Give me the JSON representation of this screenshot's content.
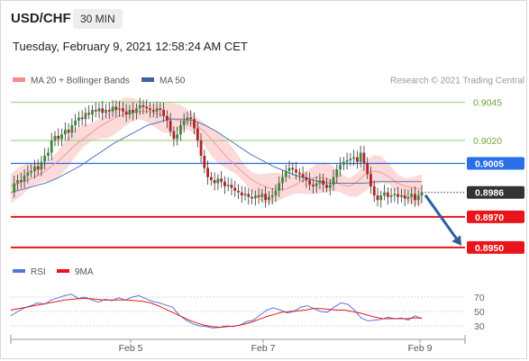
{
  "header": {
    "symbol": "USD/CHF",
    "timeframe": "30 MIN",
    "datetime": "Tuesday, February 9, 2021 12:58:24 AM CET"
  },
  "chart_data": [
    {
      "type": "line",
      "title": "",
      "legend": [
        {
          "name": "MA 20 + Bollinger Bands",
          "color": "#f28b8b"
        },
        {
          "name": "MA 50",
          "color": "#3f5f9f"
        }
      ],
      "legend_position": "top-left",
      "credit": "Research © 2021 Trading Central",
      "ylim": [
        0.8944,
        0.9053
      ],
      "grid": false,
      "current_price": {
        "value": 0.8986,
        "label": "0.8986",
        "color": "#333333"
      },
      "levels": [
        {
          "value": 0.9045,
          "label": "0.9045",
          "kind": "resistance",
          "color": "#8ccc6e",
          "boxed": false
        },
        {
          "value": 0.902,
          "label": "0.9020",
          "kind": "resistance",
          "color": "#8ccc6e",
          "boxed": false
        },
        {
          "value": 0.9005,
          "label": "0.9005",
          "kind": "pivot",
          "color": "#2a6ee8",
          "boxed": true
        },
        {
          "value": 0.897,
          "label": "0.8970",
          "kind": "support",
          "color": "#e8161a",
          "boxed": true
        },
        {
          "value": 0.895,
          "label": "0.8950",
          "kind": "support",
          "color": "#e8161a",
          "boxed": true
        }
      ],
      "projection": {
        "from": 0.8986,
        "to": 0.895,
        "color": "#2f5f9e"
      },
      "candle_colors": {
        "up": "#3a8a3a",
        "down": "#b22222"
      },
      "candle_closes": [
        0.8986,
        0.8992,
        0.8994,
        0.8993,
        0.8997,
        0.8999,
        0.9,
        0.9003,
        0.9001,
        0.9006,
        0.901,
        0.9012,
        0.902,
        0.9023,
        0.9021,
        0.9024,
        0.9027,
        0.9025,
        0.903,
        0.9033,
        0.9035,
        0.9034,
        0.9038,
        0.9037,
        0.904,
        0.9039,
        0.9041,
        0.9038,
        0.904,
        0.9039,
        0.9042,
        0.904,
        0.9041,
        0.9039,
        0.9037,
        0.904,
        0.9038,
        0.9041,
        0.9043,
        0.9042,
        0.9041,
        0.904,
        0.9039,
        0.9041,
        0.904,
        0.9036,
        0.9033,
        0.9026,
        0.9021,
        0.9024,
        0.903,
        0.9033,
        0.9035,
        0.9034,
        0.9028,
        0.902,
        0.901,
        0.9002,
        0.8996,
        0.8994,
        0.8992,
        0.8995,
        0.8993,
        0.899,
        0.8991,
        0.8989,
        0.8987,
        0.8986,
        0.8984,
        0.8985,
        0.8983,
        0.8982,
        0.8984,
        0.8983,
        0.8985,
        0.8981,
        0.8983,
        0.8984,
        0.8987,
        0.8992,
        0.8996,
        0.9,
        0.9002,
        0.9001,
        0.8999,
        0.8998,
        0.8996,
        0.8994,
        0.8991,
        0.899,
        0.8992,
        0.8994,
        0.8991,
        0.8989,
        0.8991,
        0.8996,
        0.9001,
        0.9004,
        0.9006,
        0.9007,
        0.9008,
        0.9009,
        0.9006,
        0.9012,
        0.9005,
        0.8998,
        0.899,
        0.8984,
        0.8981,
        0.8984,
        0.8986,
        0.8983,
        0.8984,
        0.8985,
        0.8983,
        0.8984,
        0.8982,
        0.8983,
        0.8985,
        0.8981,
        0.8984,
        0.8986
      ],
      "ma20": [
        0.899,
        0.8992,
        0.8994,
        0.8996,
        0.8999,
        0.9003,
        0.9007,
        0.9012,
        0.9017,
        0.9021,
        0.9025,
        0.9029,
        0.9032,
        0.9035,
        0.9037,
        0.9038,
        0.9039,
        0.9039,
        0.9038,
        0.9036,
        0.9034,
        0.9033,
        0.9032,
        0.903,
        0.9026,
        0.902,
        0.9014,
        0.9008,
        0.9003,
        0.8998,
        0.8994,
        0.8991,
        0.8989,
        0.8988,
        0.8988,
        0.899,
        0.8993,
        0.8995,
        0.8996,
        0.8995,
        0.8993,
        0.8991,
        0.899,
        0.8993,
        0.8998,
        0.9,
        0.8999,
        0.8996,
        0.8992,
        0.899,
        0.8989,
        0.8988
      ],
      "ma50": [
        0.8986,
        0.8988,
        0.899,
        0.8992,
        0.8995,
        0.8999,
        0.9003,
        0.9008,
        0.9013,
        0.9018,
        0.9022,
        0.9026,
        0.903,
        0.9032,
        0.9034,
        0.9034,
        0.9033,
        0.903,
        0.9026,
        0.9021,
        0.9016,
        0.9011,
        0.9007,
        0.9003,
        0.9,
        0.8997,
        0.8995,
        0.8993,
        0.8992,
        0.8992,
        0.8992,
        0.8992,
        0.8993,
        0.8993,
        0.8993,
        0.8993,
        0.8993
      ],
      "band_half_width": 0.0008
    },
    {
      "type": "line",
      "title": "",
      "legend": [
        {
          "name": "RSI",
          "color": "#5577dd"
        },
        {
          "name": "9MA",
          "color": "#e8161a"
        }
      ],
      "legend_position": "top-left",
      "ylim": [
        20,
        85
      ],
      "yticks": [
        30,
        50,
        70
      ],
      "ytick_labels": [
        "30",
        "50",
        "70"
      ],
      "rsi": [
        44,
        50,
        55,
        58,
        62,
        60,
        66,
        69,
        72,
        74,
        68,
        70,
        66,
        63,
        67,
        65,
        69,
        66,
        70,
        72,
        68,
        64,
        62,
        59,
        56,
        45,
        38,
        33,
        30,
        29,
        27,
        28,
        30,
        29,
        31,
        36,
        38,
        45,
        52,
        55,
        52,
        48,
        50,
        56,
        58,
        54,
        50,
        49,
        56,
        62,
        60,
        52,
        41,
        37,
        38,
        39,
        42,
        40,
        41,
        38,
        44,
        40
      ],
      "ma9": [
        52,
        54,
        56,
        58,
        60,
        62,
        64,
        66,
        67,
        68,
        68,
        67,
        66,
        66,
        66,
        66,
        65,
        64,
        62,
        58,
        53,
        48,
        43,
        38,
        34,
        31,
        29,
        28,
        29,
        30,
        32,
        35,
        39,
        43,
        46,
        49,
        50,
        51,
        52,
        54,
        54,
        53,
        52,
        52,
        50,
        48,
        45,
        42,
        40,
        40,
        40,
        40,
        41,
        41
      ]
    }
  ],
  "x_axis": {
    "ticks": [
      "Feb 5",
      "Feb 7",
      "Feb 9"
    ]
  }
}
